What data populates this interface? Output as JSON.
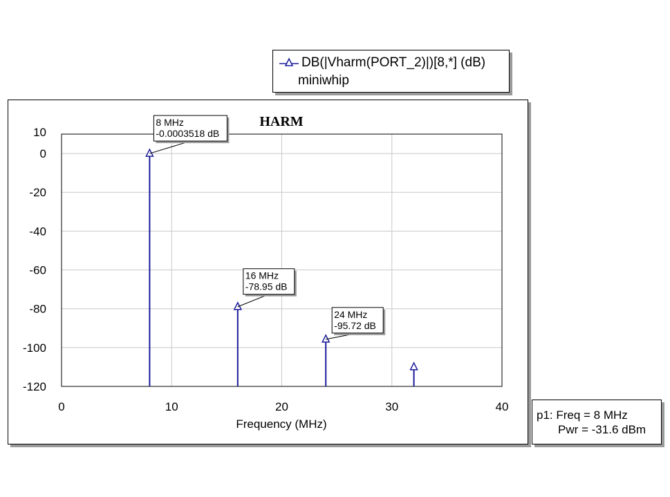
{
  "legend": {
    "series_name": "DB(|Vharm(PORT_2)|)[8,*] (dB)",
    "document": "miniwhip"
  },
  "marker_readout": {
    "line1": "p1: Freq = 8 MHz",
    "line2": "Pwr = -31.6 dBm"
  },
  "colors": {
    "series": "#1a1a99",
    "grid": "#c8c8c8",
    "shadow": "#9a9a9a"
  },
  "chart_data": {
    "type": "bar",
    "title": "HARM",
    "xlabel": "Frequency (MHz)",
    "ylabel": "",
    "xlim": [
      0,
      40
    ],
    "ylim": [
      -120,
      10
    ],
    "x_ticks": [
      0,
      10,
      20,
      30,
      40
    ],
    "y_ticks": [
      10,
      0,
      -20,
      -40,
      -60,
      -80,
      -100,
      -120
    ],
    "grid": true,
    "series": [
      {
        "name": "DB(|Vharm(PORT_2)|)[8,*] (dB)",
        "x": [
          8,
          16,
          24,
          32
        ],
        "values": [
          -0.0003518,
          -78.95,
          -95.72,
          -110
        ]
      }
    ],
    "annotations": [
      {
        "x": 8,
        "y": -0.0003518,
        "line1": "8 MHz",
        "line2": "-0.0003518 dB"
      },
      {
        "x": 16,
        "y": -78.95,
        "line1": "16 MHz",
        "line2": "-78.95 dB"
      },
      {
        "x": 24,
        "y": -95.72,
        "line1": "24 MHz",
        "line2": "-95.72 dB"
      }
    ]
  }
}
